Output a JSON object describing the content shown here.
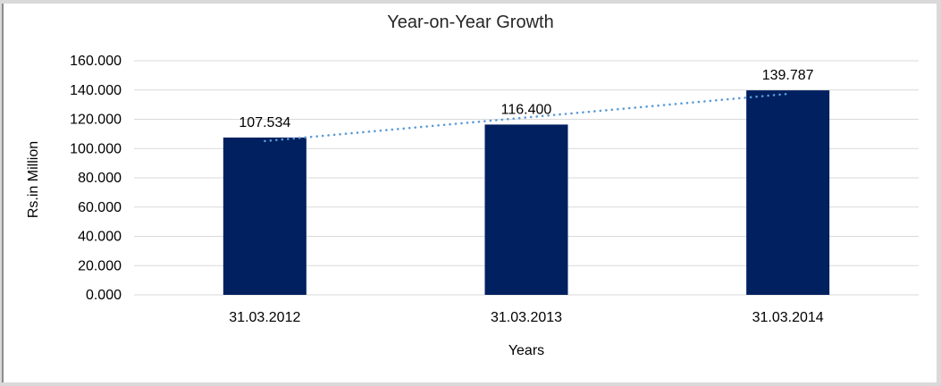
{
  "chart_data": {
    "type": "bar",
    "title": "Year-on-Year Growth",
    "xlabel": "Years",
    "ylabel": "Rs.in Million",
    "categories": [
      "31.03.2012",
      "31.03.2013",
      "31.03.2014"
    ],
    "values": [
      107.534,
      116.4,
      139.787
    ],
    "data_labels": [
      "107.534",
      "116.400",
      "139.787"
    ],
    "ylim": [
      0,
      160
    ],
    "ytick_step": 20,
    "ytick_labels": [
      "0.000",
      "20.000",
      "40.000",
      "60.000",
      "80.000",
      "100.000",
      "120.000",
      "140.000",
      "160.000"
    ],
    "grid": true,
    "legend": "none",
    "trendline": {
      "type": "linear",
      "style": "dotted"
    },
    "colors": {
      "bar": "#002060",
      "trendline": "#5b9bd5",
      "gridline": "#d9d9d9",
      "axis_text": "#000000",
      "title_text": "#262626",
      "window_border": "#d9d9d9",
      "window_border_left": "#8c8c8c"
    }
  }
}
